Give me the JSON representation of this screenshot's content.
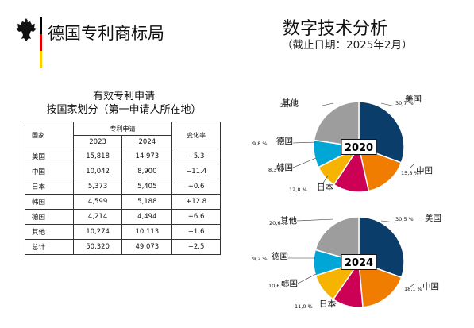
{
  "header": {
    "org_name": "德国专利商标局",
    "title": "数字技术分析",
    "subtitle": "（截止日期：2025年2月）"
  },
  "flag_colors": [
    "#000000",
    "#dd0000",
    "#ffcc00"
  ],
  "table": {
    "title_line1": "有效专利申请",
    "title_line2": "按国家划分（第一申请人所在地）",
    "col_country": "国家",
    "col_applications": "专利申请",
    "col_change": "变化率",
    "years": [
      "2023",
      "2024"
    ],
    "rows": [
      {
        "country": "美国",
        "v2023": "15,818",
        "v2024": "14,973",
        "change": "−5.3"
      },
      {
        "country": "中国",
        "v2023": "10,042",
        "v2024": "8,900",
        "change": "−11.4"
      },
      {
        "country": "日本",
        "v2023": "5,373",
        "v2024": "5,405",
        "change": "+0.6"
      },
      {
        "country": "韩国",
        "v2023": "4,599",
        "v2024": "5,188",
        "change": "+12.8"
      },
      {
        "country": "德国",
        "v2023": "4,214",
        "v2024": "4,494",
        "change": "+6.6"
      },
      {
        "country": "其他",
        "v2023": "10,274",
        "v2024": "10,113",
        "change": "−1.6"
      },
      {
        "country": "总计",
        "v2023": "50,320",
        "v2024": "49,073",
        "change": "−2.5"
      }
    ]
  },
  "chart_data": [
    {
      "type": "pie",
      "title": "2020",
      "categories": [
        "美国",
        "中国",
        "日本",
        "韩国",
        "德国",
        "其他"
      ],
      "values": [
        30.7,
        15.8,
        12.8,
        8.3,
        9.8,
        22.6
      ],
      "value_labels": [
        "30,7 %",
        "15,8 %",
        "12,8 %",
        "8,3 %",
        "9,8 %",
        "22,6 %"
      ],
      "colors": [
        "#0b3d6b",
        "#f07d00",
        "#cc0055",
        "#f6b400",
        "#00a6d6",
        "#9d9d9d"
      ]
    },
    {
      "type": "pie",
      "title": "2024",
      "categories": [
        "美国",
        "中国",
        "日本",
        "韩国",
        "德国",
        "其他"
      ],
      "values": [
        30.5,
        18.1,
        11.0,
        10.6,
        9.2,
        20.6
      ],
      "value_labels": [
        "30,5 %",
        "18,1 %",
        "11,0 %",
        "10,6 %",
        "9,2 %",
        "20,6 %"
      ],
      "colors": [
        "#0b3d6b",
        "#f07d00",
        "#cc0055",
        "#f6b400",
        "#00a6d6",
        "#9d9d9d"
      ]
    }
  ]
}
